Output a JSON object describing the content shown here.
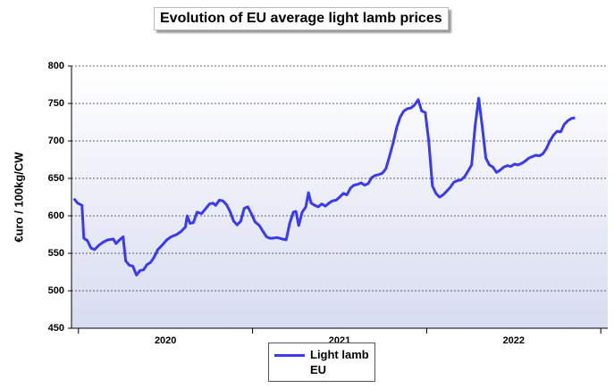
{
  "chart_data": {
    "type": "line",
    "title": "Evolution of EU average light lamb prices",
    "y_label": "€uro / 100kg/CW",
    "x": [
      2019.974,
      2019.995,
      2020.02,
      2020.031,
      2020.051,
      2020.072,
      2020.092,
      2020.118,
      2020.143,
      2020.169,
      2020.2,
      2020.215,
      2020.236,
      2020.256,
      2020.271,
      2020.292,
      2020.312,
      2020.333,
      2020.353,
      2020.374,
      2020.394,
      2020.415,
      2020.435,
      2020.456,
      2020.481,
      2020.507,
      2020.532,
      2020.563,
      2020.589,
      2020.614,
      2020.625,
      2020.64,
      2020.66,
      2020.681,
      2020.707,
      2020.732,
      2020.753,
      2020.773,
      2020.788,
      2020.809,
      2020.829,
      2020.85,
      2020.87,
      2020.891,
      2020.911,
      2020.932,
      2020.952,
      2020.973,
      2020.993,
      2021.014,
      2021.039,
      2021.06,
      2021.08,
      2021.101,
      2021.142,
      2021.172,
      2021.193,
      2021.213,
      2021.234,
      2021.249,
      2021.265,
      2021.285,
      2021.306,
      2021.321,
      2021.336,
      2021.357,
      2021.377,
      2021.398,
      2021.418,
      2021.439,
      2021.459,
      2021.48,
      2021.5,
      2021.521,
      2021.541,
      2021.562,
      2021.582,
      2021.603,
      2021.623,
      2021.644,
      2021.664,
      2021.684,
      2021.705,
      2021.725,
      2021.746,
      2021.766,
      2021.787,
      2021.807,
      2021.828,
      2021.848,
      2021.869,
      2021.889,
      2021.91,
      2021.93,
      2021.951,
      2021.971,
      2021.992,
      2022.012,
      2022.033,
      2022.053,
      2022.074,
      2022.094,
      2022.115,
      2022.135,
      2022.156,
      2022.176,
      2022.197,
      2022.217,
      2022.238,
      2022.258,
      2022.278,
      2022.299,
      2022.319,
      2022.34,
      2022.36,
      2022.381,
      2022.401,
      2022.422,
      2022.442,
      2022.463,
      2022.483,
      2022.504,
      2022.524,
      2022.545,
      2022.565,
      2022.586,
      2022.606,
      2022.627,
      2022.647,
      2022.668,
      2022.688,
      2022.708,
      2022.729,
      2022.749,
      2022.77,
      2022.79,
      2022.811,
      2022.831,
      2022.852
    ],
    "series": [
      {
        "name": "Light lamb\nEU",
        "color": "#3a3af5",
        "values": [
          623,
          617,
          614,
          570,
          567,
          557,
          555,
          561,
          565,
          568,
          569,
          563,
          568,
          572,
          540,
          534,
          533,
          521,
          527,
          528,
          535,
          538,
          545,
          555,
          561,
          568,
          572,
          575,
          579,
          585,
          600,
          590,
          591,
          605,
          603,
          610,
          616,
          617,
          614,
          621,
          620,
          615,
          606,
          593,
          588,
          593,
          610,
          612,
          603,
          592,
          587,
          579,
          572,
          570,
          571,
          569,
          568,
          590,
          605,
          606,
          587,
          605,
          612,
          631,
          617,
          614,
          612,
          616,
          613,
          617,
          620,
          621,
          625,
          630,
          628,
          637,
          641,
          642,
          644,
          641,
          643,
          651,
          654,
          655,
          657,
          663,
          680,
          697,
          718,
          732,
          740,
          743,
          744,
          748,
          755,
          740,
          738,
          700,
          640,
          630,
          625,
          628,
          633,
          638,
          645,
          647,
          648,
          652,
          660,
          668,
          720,
          757,
          720,
          677,
          668,
          665,
          658,
          661,
          665,
          667,
          666,
          669,
          668,
          670,
          673,
          677,
          679,
          681,
          680,
          683,
          690,
          700,
          708,
          713,
          712,
          722,
          727,
          730,
          731
        ]
      }
    ],
    "xlim": [
      2019.96,
      2023.04
    ],
    "xticks": [
      {
        "value": 2020.5,
        "label": "2020"
      },
      {
        "value": 2021.5,
        "label": "2021"
      },
      {
        "value": 2022.5,
        "label": "2022"
      }
    ],
    "xtick_marks": [
      2020,
      2021,
      2022,
      2023
    ],
    "ylim": [
      450,
      800
    ],
    "yticks": [
      450,
      500,
      550,
      600,
      650,
      700,
      750,
      800
    ],
    "grid": true
  }
}
